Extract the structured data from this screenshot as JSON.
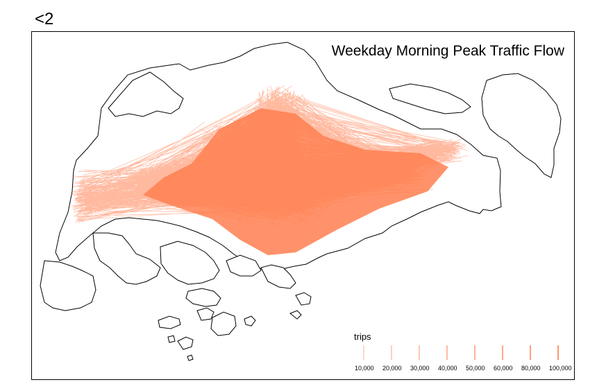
{
  "corner_label": "<2",
  "map": {
    "title": "Weekday Morning Peak Traffic Flow",
    "flow_color": "#FF7F50",
    "outline_color": "#000000"
  },
  "legend": {
    "title": "trips",
    "items": [
      {
        "label": "10,000",
        "value": 10000
      },
      {
        "label": "20,000",
        "value": 20000
      },
      {
        "label": "30,000",
        "value": 30000
      },
      {
        "label": "40,000",
        "value": 40000
      },
      {
        "label": "50,000",
        "value": 50000
      },
      {
        "label": "60,000",
        "value": 60000
      },
      {
        "label": "80,000",
        "value": 80000
      },
      {
        "label": "100,000",
        "value": 100000
      }
    ]
  }
}
